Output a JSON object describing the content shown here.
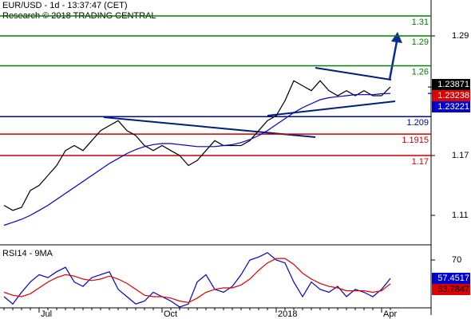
{
  "chart_data": [
    {
      "type": "line",
      "title": "EUR/USD - 1d - 13:37:47 (CET)",
      "subtitle": "Research © 2018 TRADING CENTRAL",
      "categories": [
        null,
        null,
        null,
        null,
        "Jul",
        null,
        null,
        null,
        null,
        null,
        null,
        null,
        null,
        null,
        null,
        null,
        null,
        null,
        "Oct",
        null,
        null,
        null,
        null,
        null,
        null,
        null,
        null,
        null,
        null,
        null,
        null,
        "2018",
        null,
        null,
        null,
        null,
        null,
        null,
        null,
        null,
        null,
        null,
        null,
        "Apr",
        null
      ],
      "series": [
        {
          "color": "#000000",
          "values": [
            1.12,
            1.115,
            1.118,
            1.135,
            1.14,
            1.15,
            1.16,
            1.175,
            1.18,
            1.175,
            1.185,
            1.195,
            1.2,
            1.205,
            1.195,
            1.19,
            1.18,
            1.175,
            1.18,
            1.175,
            1.17,
            1.16,
            1.165,
            1.175,
            1.185,
            1.18,
            1.18,
            1.18,
            1.185,
            1.195,
            1.205,
            1.21,
            1.225,
            1.245,
            1.24,
            1.235,
            1.245,
            1.235,
            1.23,
            1.235,
            1.23,
            1.235,
            1.23,
            1.23,
            1.23871
          ]
        },
        {
          "color": "#0000cc",
          "values": [
            1.1,
            1.103,
            1.106,
            1.11,
            1.115,
            1.12,
            1.126,
            1.132,
            1.138,
            1.144,
            1.15,
            1.156,
            1.162,
            1.167,
            1.172,
            1.176,
            1.179,
            1.181,
            1.182,
            1.182,
            1.181,
            1.18,
            1.179,
            1.179,
            1.179,
            1.18,
            1.181,
            1.183,
            1.186,
            1.19,
            1.195,
            1.201,
            1.207,
            1.213,
            1.218,
            1.222,
            1.226,
            1.228,
            1.229,
            1.23,
            1.231,
            1.231,
            1.231,
            1.232,
            1.23221
          ]
        }
      ],
      "levels": [
        {
          "value": 1.31,
          "color": "#008000"
        },
        {
          "value": 1.29,
          "color": "#008000"
        },
        {
          "value": 1.26,
          "color": "#008000"
        },
        {
          "value": 1.209,
          "color": "#0000aa"
        },
        {
          "value": 1.1915,
          "color": "#cc0000"
        },
        {
          "value": 1.17,
          "color": "#cc0000"
        }
      ],
      "last_values": [
        {
          "value": 1.23871,
          "color": "#000000"
        },
        {
          "value": 1.23238,
          "color": "#dd0000"
        },
        {
          "value": 1.23221,
          "color": "#0000cc"
        }
      ],
      "ylim": [
        1.082,
        1.326
      ],
      "yticks": [
        1.11,
        1.17,
        1.29
      ]
    },
    {
      "type": "line",
      "title": "RSI14 - 9MA",
      "series": [
        {
          "color": "#0000cc",
          "values": [
            45,
            40,
            48,
            55,
            60,
            58,
            62,
            65,
            55,
            52,
            58,
            60,
            62,
            50,
            45,
            40,
            42,
            48,
            45,
            42,
            38,
            40,
            55,
            60,
            50,
            48,
            52,
            60,
            70,
            72,
            75,
            70,
            68,
            55,
            45,
            55,
            50,
            48,
            52,
            45,
            50,
            48,
            45,
            50,
            57.4517
          ]
        },
        {
          "color": "#dd0000",
          "values": [
            48,
            46,
            45,
            47,
            51,
            55,
            58,
            60,
            59,
            57,
            56,
            57,
            59,
            57,
            54,
            50,
            46,
            45,
            45,
            44,
            42,
            41,
            44,
            48,
            50,
            51,
            51,
            53,
            57,
            63,
            68,
            71,
            71,
            67,
            61,
            57,
            54,
            52,
            51,
            49,
            49,
            49,
            48,
            49,
            53.7847
          ]
        }
      ],
      "ylim": [
        32.5,
        77.6
      ],
      "yticks": [
        70
      ]
    }
  ]
}
